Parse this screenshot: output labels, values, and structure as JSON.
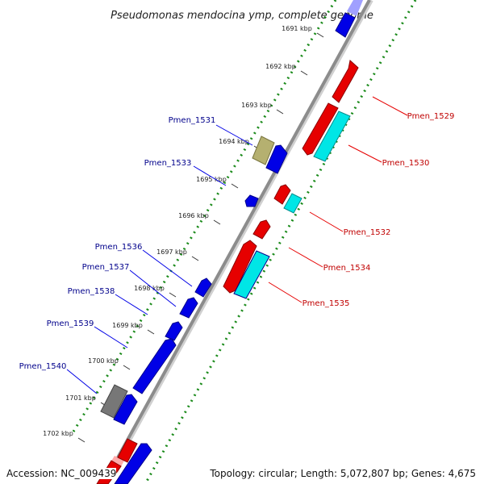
{
  "title": "Pseudomonas mendocina ymp, complete genome",
  "footer": {
    "accession": "Accession: NC_009439",
    "topology": "Topology: circular; Length: 5,072,807 bp; Genes: 4,675"
  },
  "colors": {
    "forward_gene": "#e60000",
    "reverse_gene": "#0000e6",
    "cyan_gene": "#00e6e6",
    "olive_gene": "#b5b070",
    "gray_gene": "#777777",
    "backbone": "#8c8c8c",
    "dots": "#1a8a1a",
    "forward_label": "#c00000",
    "reverse_label": "#00008b"
  },
  "ticks": [
    "1691 kbp",
    "1692 kbp",
    "1693 kbp",
    "1694 kbp",
    "1695 kbp",
    "1696 kbp",
    "1697 kbp",
    "1698 kbp",
    "1699 kbp",
    "1700 kbp",
    "1701 kbp",
    "1702 kbp"
  ],
  "labels": {
    "forward": [
      "Pmen_1529",
      "Pmen_1530",
      "Pmen_1532",
      "Pmen_1534",
      "Pmen_1535"
    ],
    "reverse": [
      "Pmen_1531",
      "Pmen_1533",
      "Pmen_1536",
      "Pmen_1537",
      "Pmen_1538",
      "Pmen_1539",
      "Pmen_1540"
    ]
  }
}
